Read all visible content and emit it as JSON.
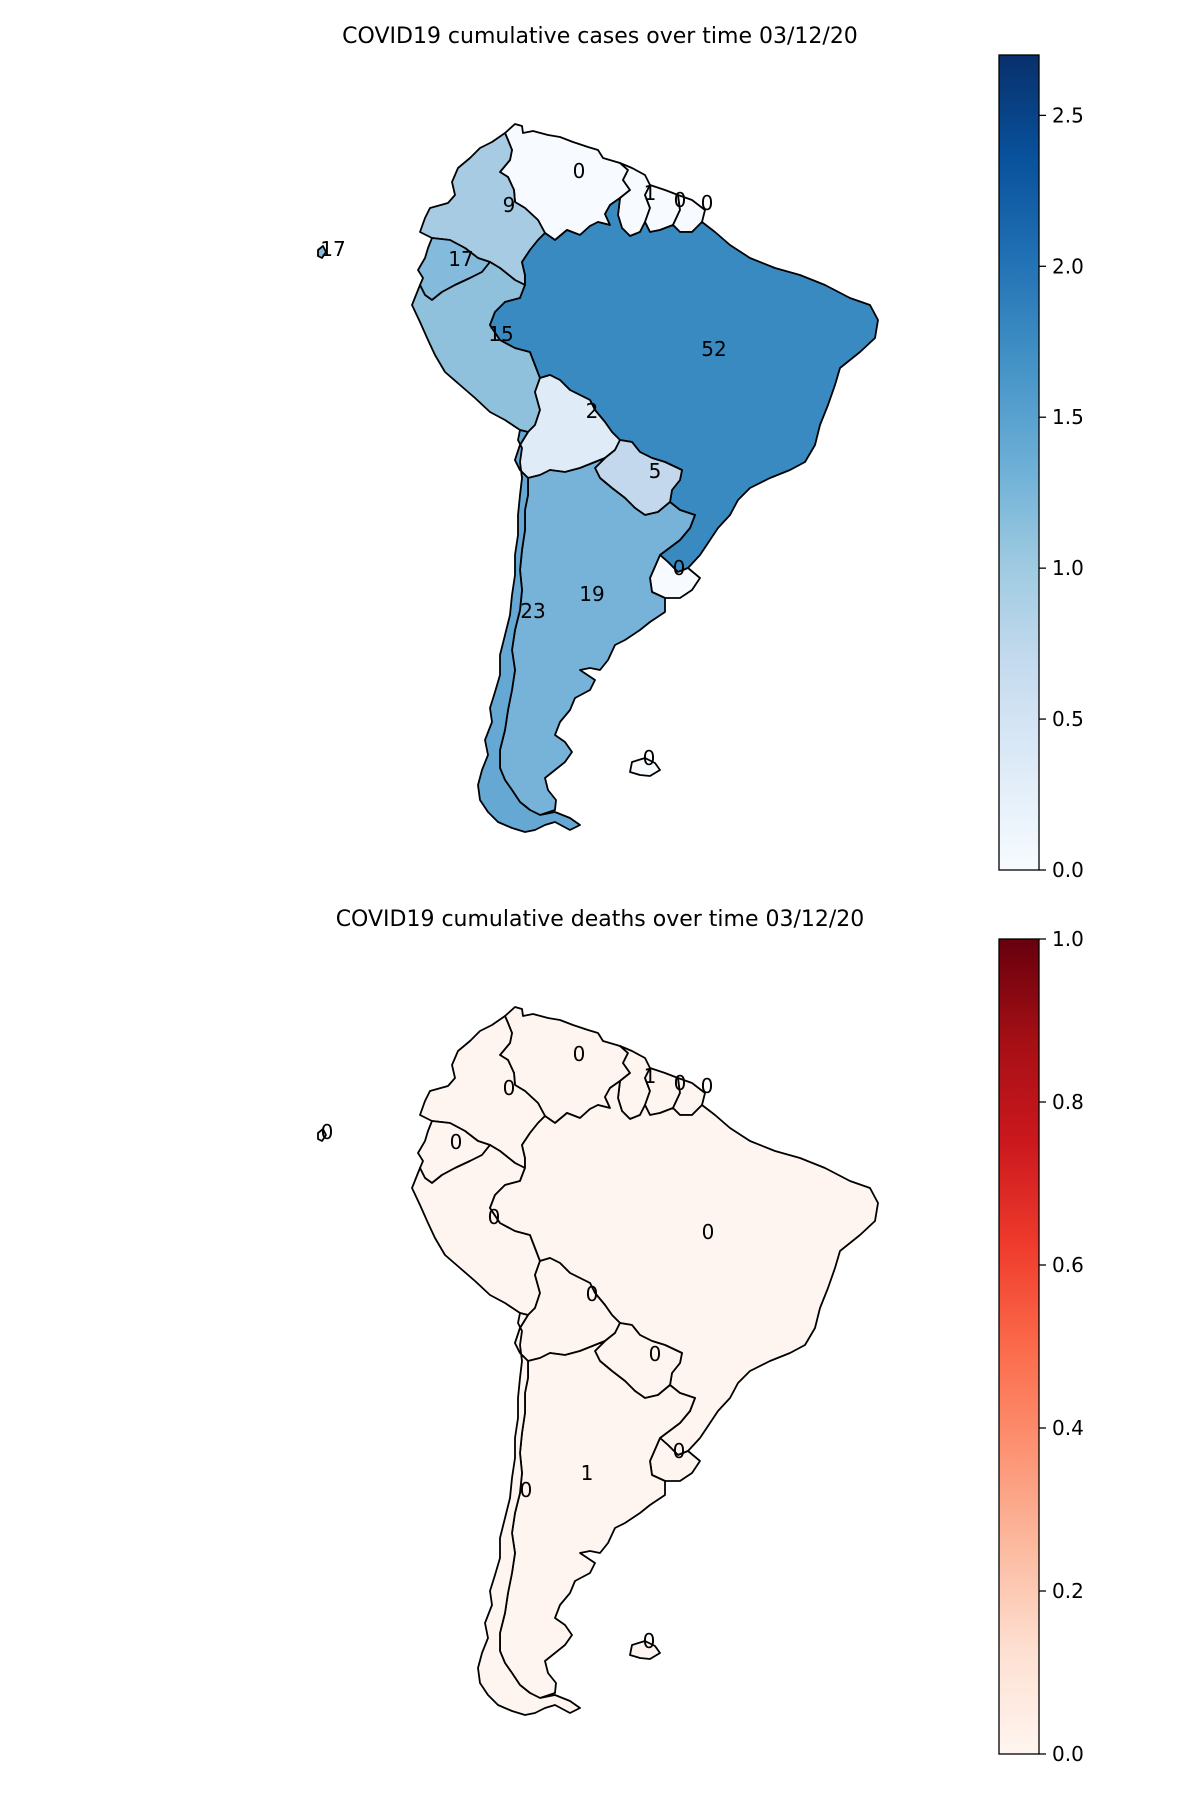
{
  "maps": [
    {
      "id": "cases",
      "title": "COVID19 cumulative cases over time 03/12/20",
      "colormap": "Blues",
      "colorbar_ticks": [
        "0.0",
        "0.5",
        "1.0",
        "1.5",
        "2.0",
        "2.5"
      ],
      "colorbar_range": [
        0,
        2.7
      ],
      "regions": [
        {
          "name": "Venezuela",
          "label": "0",
          "color": "#f7fbff"
        },
        {
          "name": "Colombia",
          "label": "9",
          "color": "#a6cbe3"
        },
        {
          "name": "Ecuador",
          "label": "17",
          "color": "#84badb"
        },
        {
          "name": "Galapagos",
          "label": "17",
          "color": "#84badb"
        },
        {
          "name": "Guyana",
          "label": "1",
          "color": "#f7fbff"
        },
        {
          "name": "Suriname",
          "label": "0",
          "color": "#f7fbff"
        },
        {
          "name": "French Guiana",
          "label": "0",
          "color": "#f7fbff"
        },
        {
          "name": "Peru",
          "label": "15",
          "color": "#8fc1dd"
        },
        {
          "name": "Brazil",
          "label": "52",
          "color": "#3a8ac2"
        },
        {
          "name": "Bolivia",
          "label": "2",
          "color": "#dfebf7"
        },
        {
          "name": "Paraguay",
          "label": "5",
          "color": "#c3d8ed"
        },
        {
          "name": "Uruguay",
          "label": "0",
          "color": "#f7fbff"
        },
        {
          "name": "Argentina",
          "label": "19",
          "color": "#77b2d9"
        },
        {
          "name": "Chile",
          "label": "23",
          "color": "#66a8d4"
        },
        {
          "name": "Falkland Islands",
          "label": "0",
          "color": "#f7fbff"
        }
      ]
    },
    {
      "id": "deaths",
      "title": "COVID19 cumulative deaths over time 03/12/20",
      "colormap": "Reds",
      "colorbar_ticks": [
        "0.0",
        "0.2",
        "0.4",
        "0.6",
        "0.8",
        "1.0"
      ],
      "colorbar_range": [
        0,
        1.0
      ],
      "regions": [
        {
          "name": "Venezuela",
          "label": "0",
          "color": "#fff5f0"
        },
        {
          "name": "Colombia",
          "label": "0",
          "color": "#fff5f0"
        },
        {
          "name": "Ecuador",
          "label": "0",
          "color": "#fff5f0"
        },
        {
          "name": "Galapagos",
          "label": "0",
          "color": "#fff5f0"
        },
        {
          "name": "Guyana",
          "label": "1",
          "color": "#fff5f0"
        },
        {
          "name": "Suriname",
          "label": "0",
          "color": "#fff5f0"
        },
        {
          "name": "French Guiana",
          "label": "0",
          "color": "#fff5f0"
        },
        {
          "name": "Peru",
          "label": "0",
          "color": "#fff5f0"
        },
        {
          "name": "Brazil",
          "label": "0",
          "color": "#fff5f0"
        },
        {
          "name": "Bolivia",
          "label": "0",
          "color": "#fff5f0"
        },
        {
          "name": "Paraguay",
          "label": "0",
          "color": "#fff5f0"
        },
        {
          "name": "Uruguay",
          "label": "0",
          "color": "#fff5f0"
        },
        {
          "name": "Argentina",
          "label": "1",
          "color": "#fff5f0"
        },
        {
          "name": "Chile",
          "label": "0",
          "color": "#fff5f0"
        },
        {
          "name": "Falkland Islands",
          "label": "0",
          "color": "#fff5f0"
        }
      ]
    }
  ]
}
